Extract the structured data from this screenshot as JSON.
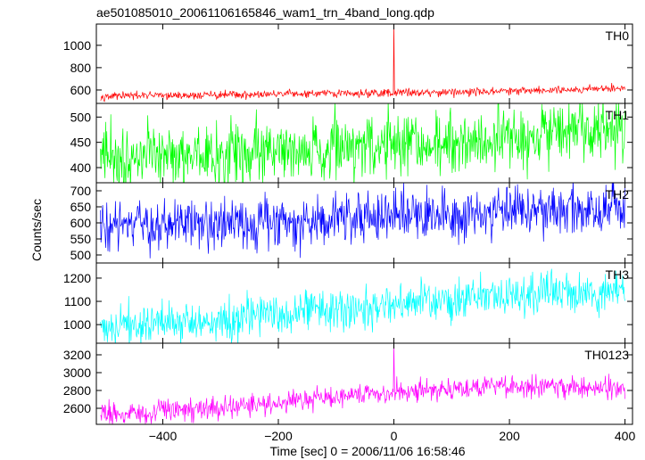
{
  "chart_data": {
    "type": "line",
    "title": "ae501085010_20061106165846_wam1_trn_4band_long.qdp",
    "xlabel": "Time [sec] 0 = 2006/11/06 16:58:46",
    "ylabel": "Counts/sec",
    "xlim": [
      -515,
      413
    ],
    "x_ticks": [
      -400,
      -200,
      0,
      200,
      400
    ],
    "x_tick_labels": [
      "−400",
      "−200",
      "0",
      "200",
      "400"
    ],
    "x_range": [
      -508,
      400
    ],
    "x_step": 1,
    "grid": false,
    "panels": [
      {
        "name": "TH0",
        "color": "#ff0000",
        "ylim": [
          480,
          1190
        ],
        "ticks": [
          600,
          800,
          1000
        ],
        "trend": [
          [
            -508,
            545
          ],
          [
            -300,
            555
          ],
          [
            0,
            575
          ],
          [
            200,
            590
          ],
          [
            400,
            620
          ]
        ],
        "noise": 18,
        "spikes": [
          [
            0,
            1195
          ]
        ]
      },
      {
        "name": "TH1",
        "color": "#00ff00",
        "ylim": [
          370,
          527
        ],
        "ticks": [
          400,
          450,
          500
        ],
        "trend": [
          [
            -508,
            420
          ],
          [
            -300,
            428
          ],
          [
            0,
            445
          ],
          [
            200,
            460
          ],
          [
            400,
            470
          ]
        ],
        "noise": 32,
        "spikes": []
      },
      {
        "name": "TH2",
        "color": "#0000ff",
        "ylim": [
          475,
          725
        ],
        "ticks": [
          500,
          550,
          600,
          650,
          700
        ],
        "trend": [
          [
            -508,
            585
          ],
          [
            -300,
            592
          ],
          [
            0,
            625
          ],
          [
            200,
            640
          ],
          [
            400,
            642
          ]
        ],
        "noise": 40,
        "spikes": [
          [
            0,
            700
          ]
        ]
      },
      {
        "name": "TH3",
        "color": "#00ffff",
        "ylim": [
          920,
          1265
        ],
        "ticks": [
          1000,
          1100,
          1200
        ],
        "trend": [
          [
            -508,
            990
          ],
          [
            -300,
            1020
          ],
          [
            0,
            1080
          ],
          [
            200,
            1130
          ],
          [
            400,
            1145
          ]
        ],
        "noise": 45,
        "spikes": []
      },
      {
        "name": "TH0123",
        "color": "#ff00ff",
        "ylim": [
          2420,
          3330
        ],
        "ticks": [
          2600,
          2800,
          3000,
          3200
        ],
        "trend": [
          [
            -508,
            2540
          ],
          [
            -300,
            2600
          ],
          [
            -100,
            2720
          ],
          [
            0,
            2790
          ],
          [
            200,
            2850
          ],
          [
            400,
            2830
          ]
        ],
        "noise": 60,
        "spikes": [
          [
            0,
            3320
          ]
        ]
      }
    ]
  }
}
